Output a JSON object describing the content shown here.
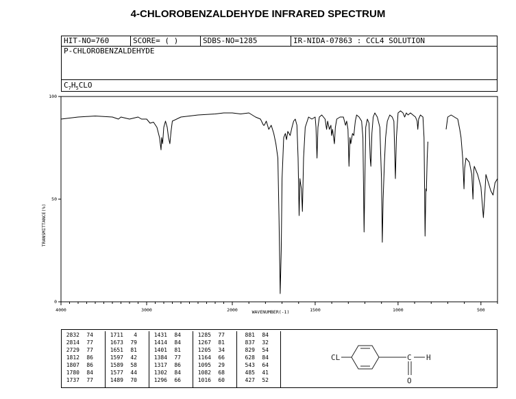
{
  "title": "4-CHLOROBENZALDEHYDE INFRARED SPECTRUM",
  "header": {
    "hit_no": "HIT-NO=760",
    "score": "SCORE=  (    )",
    "sdbs_no": "SDBS-NO=1285",
    "ir_info": "IR-NIDA-07863 : CCL4 SOLUTION",
    "compound_name": "P-CHLOROBENZALDEHYDE",
    "formula_c": "C",
    "formula_c_sub": "7",
    "formula_h": "H",
    "formula_h_sub": "5",
    "formula_rest": "CLO"
  },
  "chart_data": {
    "type": "line",
    "title": "",
    "xlabel": "WAVENUMBER(-1)",
    "ylabel": "TRANSMITTANCE(%)",
    "xlim": [
      4000,
      400
    ],
    "ylim": [
      0,
      100
    ],
    "x_ticks": [
      4000,
      3000,
      2000,
      1500,
      1000,
      500
    ],
    "x_tick_labels": [
      "4000",
      "3000",
      "2000",
      "1500",
      "1000",
      "500"
    ],
    "y_ticks": [
      0,
      50,
      100
    ],
    "y_tick_labels": [
      "0",
      "50",
      "100"
    ],
    "grid": false,
    "series": [
      {
        "segments": [
          [
            [
              4000,
              89
            ],
            [
              3800,
              90
            ],
            [
              3600,
              90.5
            ],
            [
              3400,
              90
            ],
            [
              3330,
              89
            ],
            [
              3300,
              90
            ],
            [
              3200,
              89
            ],
            [
              3100,
              90
            ],
            [
              3060,
              89
            ],
            [
              3000,
              89
            ],
            [
              2960,
              87
            ],
            [
              2920,
              87.5
            ],
            [
              2880,
              85
            ],
            [
              2850,
              80
            ],
            [
              2832,
              74
            ],
            [
              2825,
              80
            ],
            [
              2814,
              77
            ],
            [
              2800,
              85
            ],
            [
              2780,
              88
            ],
            [
              2760,
              85
            ],
            [
              2745,
              80
            ],
            [
              2729,
              77
            ],
            [
              2715,
              83
            ],
            [
              2700,
              88
            ],
            [
              2600,
              90
            ],
            [
              2400,
              91
            ],
            [
              2200,
              91.5
            ],
            [
              2100,
              92
            ],
            [
              2000,
              92
            ],
            [
              1950,
              91.5
            ],
            [
              1900,
              92
            ],
            [
              1860,
              90
            ],
            [
              1830,
              89
            ],
            [
              1812,
              86
            ],
            [
              1807,
              86
            ],
            [
              1795,
              88
            ],
            [
              1780,
              84
            ],
            [
              1765,
              86
            ],
            [
              1750,
              82
            ],
            [
              1737,
              77
            ],
            [
              1725,
              70
            ],
            [
              1718,
              40
            ],
            [
              1711,
              4
            ],
            [
              1705,
              25
            ],
            [
              1700,
              60
            ],
            [
              1690,
              80
            ],
            [
              1680,
              82
            ],
            [
              1673,
              79
            ],
            [
              1665,
              83
            ],
            [
              1651,
              81
            ],
            [
              1640,
              85
            ],
            [
              1630,
              88
            ],
            [
              1620,
              89
            ],
            [
              1610,
              86
            ],
            [
              1603,
              70
            ],
            [
              1597,
              42
            ],
            [
              1592,
              60
            ],
            [
              1589,
              58
            ],
            [
              1583,
              55
            ],
            [
              1577,
              44
            ],
            [
              1570,
              70
            ],
            [
              1560,
              85
            ],
            [
              1540,
              90
            ],
            [
              1520,
              89
            ],
            [
              1500,
              90
            ],
            [
              1495,
              85
            ],
            [
              1489,
              70
            ],
            [
              1483,
              85
            ],
            [
              1475,
              90
            ],
            [
              1460,
              91
            ],
            [
              1440,
              89
            ],
            [
              1431,
              84
            ],
            [
              1425,
              88
            ],
            [
              1414,
              84
            ],
            [
              1405,
              86
            ],
            [
              1401,
              81
            ],
            [
              1395,
              84
            ],
            [
              1384,
              77
            ],
            [
              1378,
              85
            ],
            [
              1370,
              89
            ],
            [
              1350,
              90
            ],
            [
              1330,
              90
            ],
            [
              1317,
              86
            ],
            [
              1310,
              88
            ],
            [
              1302,
              84
            ],
            [
              1296,
              66
            ],
            [
              1290,
              80
            ],
            [
              1285,
              77
            ],
            [
              1275,
              82
            ],
            [
              1267,
              81
            ],
            [
              1258,
              88
            ],
            [
              1250,
              91
            ],
            [
              1235,
              90
            ],
            [
              1220,
              88
            ],
            [
              1212,
              80
            ],
            [
              1205,
              34
            ],
            [
              1200,
              60
            ],
            [
              1195,
              85
            ],
            [
              1185,
              89
            ],
            [
              1175,
              87
            ],
            [
              1168,
              70
            ],
            [
              1164,
              66
            ],
            [
              1158,
              82
            ],
            [
              1150,
              90
            ],
            [
              1140,
              92
            ],
            [
              1125,
              90
            ],
            [
              1110,
              85
            ],
            [
              1100,
              60
            ],
            [
              1095,
              29
            ],
            [
              1090,
              50
            ],
            [
              1082,
              68
            ],
            [
              1075,
              80
            ],
            [
              1065,
              88
            ],
            [
              1050,
              91
            ],
            [
              1035,
              90
            ],
            [
              1025,
              88
            ],
            [
              1016,
              60
            ],
            [
              1010,
              80
            ],
            [
              1000,
              92
            ],
            [
              985,
              93
            ],
            [
              970,
              92
            ],
            [
              960,
              90
            ],
            [
              950,
              92
            ],
            [
              940,
              91
            ],
            [
              925,
              92
            ],
            [
              910,
              91
            ],
            [
              895,
              90
            ],
            [
              885,
              88
            ],
            [
              881,
              84
            ],
            [
              876,
              89
            ],
            [
              865,
              91
            ],
            [
              850,
              90
            ],
            [
              843,
              80
            ],
            [
              837,
              32
            ],
            [
              832,
              55
            ],
            [
              829,
              54
            ],
            [
              824,
              70
            ],
            [
              820,
              78
            ]
          ],
          [
            [
              710,
              84
            ],
            [
              700,
              90
            ],
            [
              680,
              91
            ],
            [
              660,
              90
            ],
            [
              640,
              89
            ],
            [
              628,
              84
            ],
            [
              620,
              80
            ],
            [
              610,
              70
            ],
            [
              602,
              55
            ],
            [
              598,
              65
            ],
            [
              590,
              70
            ],
            [
              570,
              68
            ],
            [
              555,
              62
            ],
            [
              548,
              50
            ],
            [
              543,
              64
            ],
            [
              540,
              66
            ],
            [
              520,
              62
            ],
            [
              500,
              56
            ],
            [
              485,
              41
            ],
            [
              478,
              50
            ],
            [
              470,
              62
            ],
            [
              455,
              58
            ],
            [
              440,
              54
            ],
            [
              427,
              52
            ],
            [
              415,
              58
            ],
            [
              400,
              60
            ]
          ]
        ]
      }
    ]
  },
  "peaks": [
    [
      [
        "2832",
        "74"
      ],
      [
        "2814",
        "77"
      ],
      [
        "2729",
        "77"
      ],
      [
        "1812",
        "86"
      ],
      [
        "1807",
        "86"
      ],
      [
        "1780",
        "84"
      ],
      [
        "1737",
        "77"
      ]
    ],
    [
      [
        "1711",
        "4"
      ],
      [
        "1673",
        "79"
      ],
      [
        "1651",
        "81"
      ],
      [
        "1597",
        "42"
      ],
      [
        "1589",
        "58"
      ],
      [
        "1577",
        "44"
      ],
      [
        "1489",
        "70"
      ]
    ],
    [
      [
        "1431",
        "84"
      ],
      [
        "1414",
        "84"
      ],
      [
        "1401",
        "81"
      ],
      [
        "1384",
        "77"
      ],
      [
        "1317",
        "86"
      ],
      [
        "1302",
        "84"
      ],
      [
        "1296",
        "66"
      ]
    ],
    [
      [
        "1285",
        "77"
      ],
      [
        "1267",
        "81"
      ],
      [
        "1205",
        "34"
      ],
      [
        "1164",
        "66"
      ],
      [
        "1095",
        "29"
      ],
      [
        "1082",
        "68"
      ],
      [
        "1016",
        "60"
      ]
    ],
    [
      [
        "881",
        "84"
      ],
      [
        "837",
        "32"
      ],
      [
        "829",
        "54"
      ],
      [
        "628",
        "84"
      ],
      [
        "543",
        "64"
      ],
      [
        "485",
        "41"
      ],
      [
        "427",
        "52"
      ]
    ]
  ],
  "structure": {
    "cl_label": "CL",
    "h_label": "H",
    "c_label": "C",
    "o_label": "O"
  }
}
